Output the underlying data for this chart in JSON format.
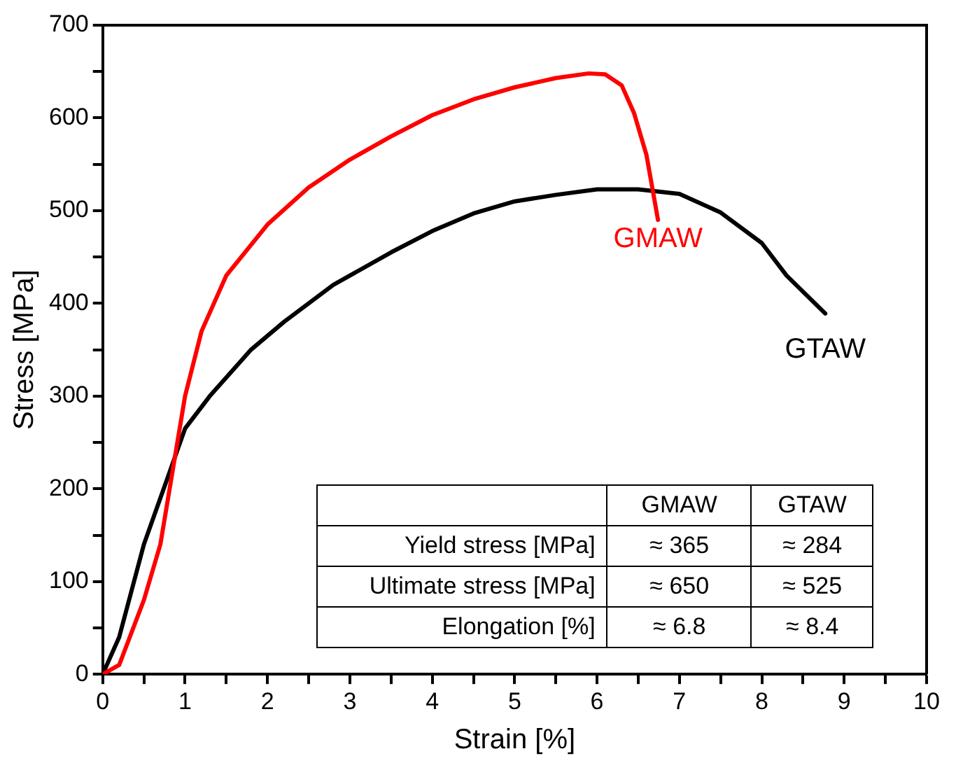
{
  "chart_data": {
    "type": "line",
    "xlabel": "Strain [%]",
    "ylabel": "Stress [MPa]",
    "xlim": [
      0,
      10
    ],
    "ylim": [
      0,
      700
    ],
    "xticks": [
      0,
      {
        "value": 0.5,
        "label": null
      },
      1,
      {
        "value": 1.5,
        "label": null
      },
      2,
      {
        "value": 2.5,
        "label": null
      },
      3,
      {
        "value": 3.5,
        "label": null
      },
      4,
      {
        "value": 4.5,
        "label": null
      },
      5,
      {
        "value": 5.5,
        "label": null
      },
      6,
      {
        "value": 6.5,
        "label": null
      },
      7,
      {
        "value": 7.5,
        "label": null
      },
      8,
      {
        "value": 8.5,
        "label": null
      },
      9,
      {
        "value": 9.5,
        "label": null
      },
      10
    ],
    "yticks": [
      0,
      {
        "value": 50,
        "label": null
      },
      100,
      {
        "value": 150,
        "label": null
      },
      200,
      {
        "value": 250,
        "label": null
      },
      300,
      {
        "value": 350,
        "label": null
      },
      400,
      {
        "value": 450,
        "label": null
      },
      500,
      {
        "value": 550,
        "label": null
      },
      600,
      {
        "value": 650,
        "label": null
      },
      700
    ],
    "grid": false,
    "legend": false,
    "marker": "none",
    "line_style": "solid",
    "series": [
      {
        "name": "GMAW",
        "color": "#ff0000",
        "x": [
          0,
          0.2,
          0.5,
          0.7,
          0.85,
          1.0,
          1.2,
          1.5,
          2,
          2.5,
          3,
          3.5,
          4,
          4.5,
          5,
          5.5,
          5.9,
          6.1,
          6.3,
          6.45,
          6.6,
          6.74
        ],
        "values": [
          0,
          10,
          80,
          140,
          220,
          300,
          370,
          430,
          485,
          525,
          555,
          580,
          603,
          620,
          633,
          643,
          648,
          647,
          635,
          605,
          560,
          490
        ]
      },
      {
        "name": "GTAW",
        "color": "#000000",
        "x": [
          0,
          0.2,
          0.5,
          0.8,
          1.0,
          1.3,
          1.8,
          2.2,
          2.8,
          3.5,
          4,
          4.5,
          5,
          5.5,
          6,
          6.5,
          7,
          7.5,
          8,
          8.3,
          8.77
        ],
        "values": [
          0,
          40,
          140,
          215,
          265,
          300,
          350,
          380,
          420,
          455,
          478,
          497,
          510,
          517,
          523,
          523,
          518,
          498,
          465,
          430,
          389
        ]
      }
    ],
    "annotations": [
      "GMAW",
      "GTAW",
      "Yield stress [MPa]",
      "≈ 365",
      "≈ 284",
      "Ultimate stress [MPa]",
      "≈ 650",
      "≈ 525",
      "Elongation [%]",
      "≈ 6.8",
      "≈ 8.4"
    ]
  }
}
